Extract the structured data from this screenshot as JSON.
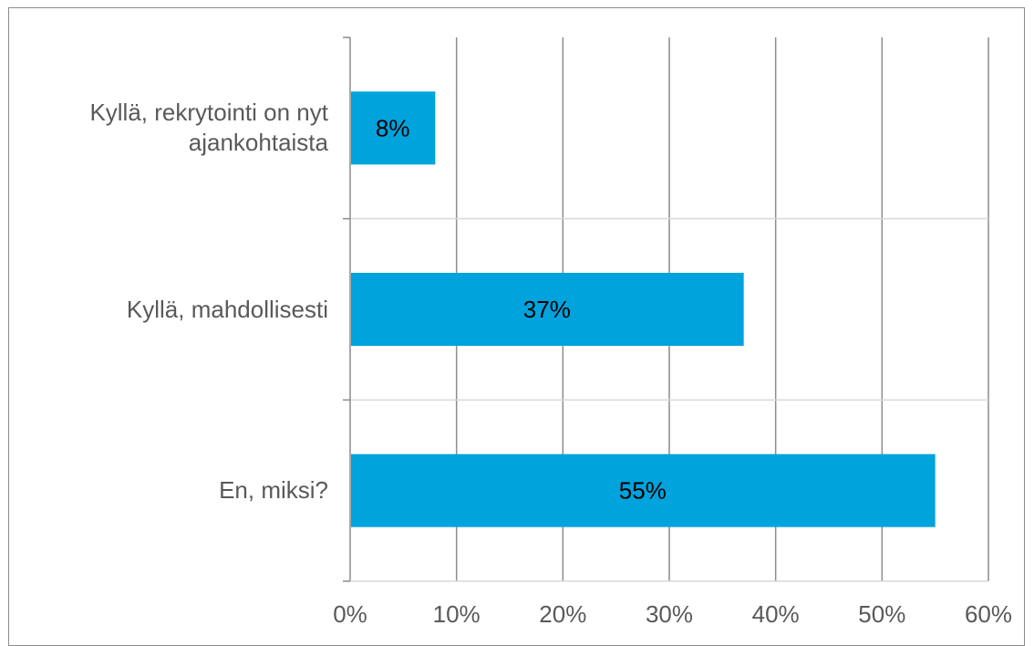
{
  "chart_data": {
    "type": "bar",
    "orientation": "horizontal",
    "categories": [
      "Kyllä, rekrytointi on nyt ajankohtaista",
      "Kyllä, mahdollisesti",
      "En, miksi?"
    ],
    "values": [
      8,
      37,
      55
    ],
    "data_labels": [
      "8%",
      "37%",
      "55%"
    ],
    "xlim": [
      0,
      60
    ],
    "x_ticks": [
      0,
      10,
      20,
      30,
      40,
      50,
      60
    ],
    "x_tick_labels": [
      "0%",
      "10%",
      "20%",
      "30%",
      "40%",
      "50%",
      "60%"
    ],
    "grid": true,
    "legend": "none",
    "bar_color": "#00a3dc",
    "title": "",
    "xlabel": "",
    "ylabel": ""
  }
}
